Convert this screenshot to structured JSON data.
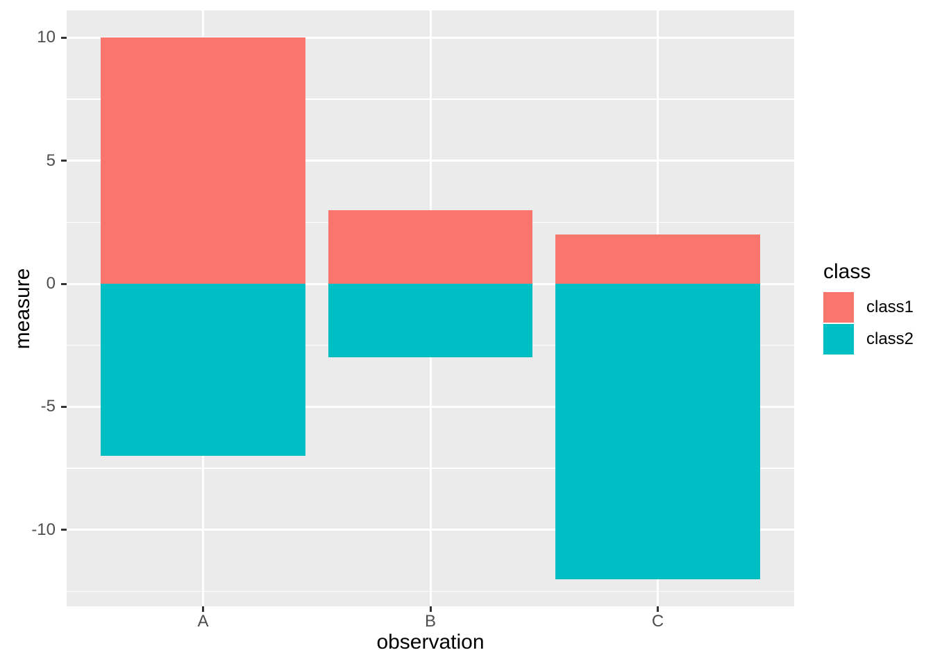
{
  "figure": {
    "background": "#FFFFFF",
    "panel_bg": "#EBEBEB",
    "grid_color": "#FFFFFF",
    "tick_color": "#333333",
    "tick_label_color": "#4D4D4D",
    "text_color": "#000000"
  },
  "chart_data": {
    "type": "bar",
    "stacked": true,
    "orientation": "vertical",
    "title": "",
    "xlabel": "observation",
    "ylabel": "measure",
    "categories": [
      "A",
      "B",
      "C"
    ],
    "series": [
      {
        "name": "class1",
        "color": "#F8766D",
        "values": [
          10,
          3,
          2
        ]
      },
      {
        "name": "class2",
        "color": "#00BFC4",
        "values": [
          -7,
          -3,
          -12
        ]
      }
    ],
    "ylim": [
      -13.1,
      11.1
    ],
    "y_major_ticks": [
      10,
      5,
      0,
      -5,
      -10
    ],
    "y_minor_ticks": [
      7.5,
      2.5,
      -2.5,
      -7.5,
      -12.5
    ],
    "grid": true,
    "bar_width_fraction": 0.9,
    "legend": {
      "title": "class",
      "position": "right",
      "entries": [
        {
          "label": "class1",
          "color": "#F8766D"
        },
        {
          "label": "class2",
          "color": "#00BFC4"
        }
      ]
    }
  }
}
